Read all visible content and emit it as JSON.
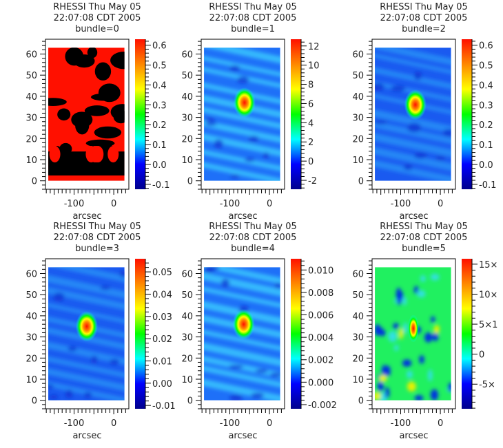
{
  "chart_data": [
    {
      "type": "heatmap",
      "title": "RHESSI Thu May 05 22:07:08 CDT 2005",
      "subtitle": "bundle=0",
      "xlabel": "arcsec",
      "ylabel": "",
      "xlim": [
        -172,
        38
      ],
      "ylim": [
        -4,
        67
      ],
      "xticks": [
        "-100",
        "0"
      ],
      "yticks": [
        "0",
        "10",
        "20",
        "30",
        "40",
        "50",
        "60"
      ],
      "colorbar": {
        "range": [
          -0.125,
          0.63
        ],
        "ticks": [
          -0.1,
          0.0,
          0.1,
          0.2,
          0.3,
          0.4,
          0.5,
          0.6
        ],
        "labels": [
          "-0.1",
          "0.0",
          "0.1",
          "0.2",
          "0.3",
          "0.4",
          "0.5",
          "0.6"
        ]
      },
      "style": "binary",
      "hotspot": null
    },
    {
      "type": "heatmap",
      "title": "RHESSI Thu May 05 22:07:08 CDT 2005",
      "subtitle": "bundle=1",
      "xlabel": "arcsec",
      "ylabel": "",
      "xlim": [
        -172,
        38
      ],
      "ylim": [
        -4,
        67
      ],
      "xticks": [
        "-100",
        "0"
      ],
      "yticks": [
        "0",
        "10",
        "20",
        "30",
        "40",
        "50",
        "60"
      ],
      "colorbar": {
        "range": [
          -2.93,
          12.7
        ],
        "ticks": [
          -2,
          0,
          2,
          4,
          6,
          8,
          10,
          12
        ],
        "labels": [
          "-2",
          "0",
          "2",
          "4",
          "6",
          "8",
          "10",
          "12"
        ]
      },
      "style": "stripes",
      "hotspot": [
        -63,
        37
      ]
    },
    {
      "type": "heatmap",
      "title": "RHESSI Thu May 05 22:07:08 CDT 2005",
      "subtitle": "bundle=2",
      "xlabel": "arcsec",
      "ylabel": "",
      "xlim": [
        -172,
        38
      ],
      "ylim": [
        -4,
        67
      ],
      "xticks": [
        "-100",
        "0"
      ],
      "yticks": [
        "0",
        "10",
        "20",
        "30",
        "40",
        "50",
        "60"
      ],
      "colorbar": {
        "range": [
          -0.125,
          0.63
        ],
        "ticks": [
          -0.1,
          0.0,
          0.1,
          0.2,
          0.3,
          0.4,
          0.5,
          0.6
        ],
        "labels": [
          "-0.1",
          "0.0",
          "0.1",
          "0.2",
          "0.3",
          "0.4",
          "0.5",
          "0.6"
        ]
      },
      "style": "smooth",
      "hotspot": [
        -63,
        36
      ]
    },
    {
      "type": "heatmap",
      "title": "RHESSI Thu May 05 22:07:08 CDT 2005",
      "subtitle": "bundle=3",
      "xlabel": "arcsec",
      "ylabel": "",
      "xlim": [
        -172,
        38
      ],
      "ylim": [
        -4,
        67
      ],
      "xticks": [
        "-100",
        "0"
      ],
      "yticks": [
        "0",
        "10",
        "20",
        "30",
        "40",
        "50",
        "60"
      ],
      "colorbar": {
        "range": [
          -0.0115,
          0.0559
        ],
        "ticks": [
          -0.01,
          0.0,
          0.01,
          0.02,
          0.03,
          0.04,
          0.05
        ],
        "labels": [
          "-0.01",
          "0.00",
          "0.01",
          "0.02",
          "0.03",
          "0.04",
          "0.05"
        ]
      },
      "style": "smooth",
      "hotspot": [
        -68,
        35
      ]
    },
    {
      "type": "heatmap",
      "title": "RHESSI Thu May 05 22:07:08 CDT 2005",
      "subtitle": "bundle=4",
      "xlabel": "arcsec",
      "ylabel": "",
      "xlim": [
        -172,
        38
      ],
      "ylim": [
        -4,
        67
      ],
      "xticks": [
        "-100",
        "0"
      ],
      "yticks": [
        "0",
        "10",
        "20",
        "30",
        "40",
        "50",
        "60"
      ],
      "colorbar": {
        "range": [
          -0.00237,
          0.011
        ],
        "ticks": [
          -0.002,
          0.0,
          0.002,
          0.004,
          0.006,
          0.008,
          0.01
        ],
        "labels": [
          "-0.002",
          "0.000",
          "0.002",
          "0.004",
          "0.006",
          "0.008",
          "0.010"
        ]
      },
      "style": "stripes",
      "hotspot": [
        -65,
        36
      ]
    },
    {
      "type": "heatmap",
      "title": "RHESSI Thu May 05 22:07:08 CDT 2005",
      "subtitle": "bundle=5",
      "xlabel": "arcsec",
      "ylabel": "",
      "xlim": [
        -172,
        38
      ],
      "ylim": [
        -4,
        67
      ],
      "xticks": [
        "-100",
        "0"
      ],
      "yticks": [
        "0",
        "10",
        "20",
        "30",
        "40",
        "50",
        "60"
      ],
      "colorbar": {
        "range": [
          -9.1,
          15.9
        ],
        "ticks": [
          -5,
          0,
          5,
          10,
          15
        ],
        "labels": [
          "-5×",
          "0",
          "5×1",
          "10×",
          "15×"
        ]
      },
      "style": "noisy",
      "hotspot": [
        -68,
        34
      ]
    }
  ],
  "colors": {
    "colormap": [
      "#00008c",
      "#0000ff",
      "#00ffff",
      "#00ff00",
      "#ffff00",
      "#ff8800",
      "#ff1000"
    ],
    "black": "#000000"
  }
}
